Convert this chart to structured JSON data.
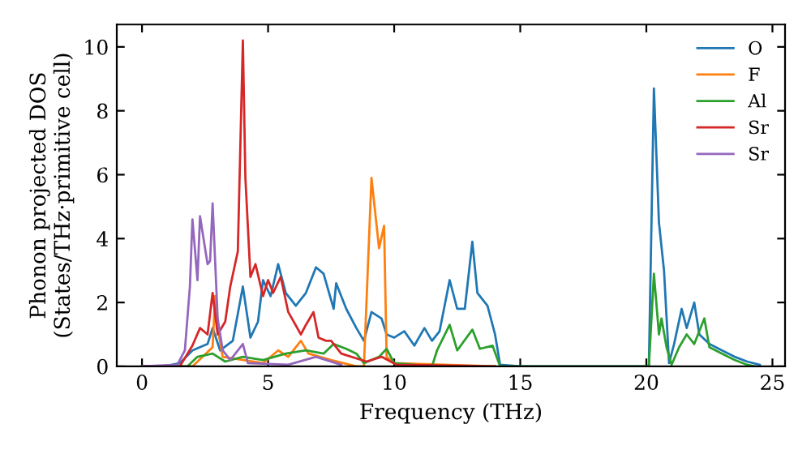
{
  "chart_data": {
    "type": "line",
    "xlabel": "Frequency (THz)",
    "ylabel": "Phonon projected DOS\n(States/THz·primitive cell)",
    "xlim": [
      -1,
      25.5
    ],
    "ylim": [
      0,
      10.7
    ],
    "xticks": [
      0,
      5,
      10,
      15,
      20,
      25
    ],
    "yticks": [
      0,
      2,
      4,
      6,
      8,
      10
    ],
    "grid": false,
    "legend": "top right",
    "marker": "none",
    "line_style": "solid",
    "series": [
      {
        "name": "O",
        "color": "#1f77b4",
        "x": [
          0,
          1,
          1.5,
          2,
          2.3,
          2.6,
          2.8,
          3.1,
          3.6,
          4.0,
          4.3,
          4.6,
          4.8,
          5.1,
          5.4,
          5.7,
          6.1,
          6.5,
          6.9,
          7.2,
          7.6,
          7.7,
          8.1,
          8.5,
          8.8,
          9.1,
          9.5,
          9.7,
          10.0,
          10.4,
          10.8,
          11.2,
          11.5,
          11.8,
          12.2,
          12.5,
          12.8,
          13.1,
          13.3,
          13.7,
          14.0,
          14.2,
          15,
          20.1,
          20.3,
          20.5,
          20.7,
          20.9,
          21.1,
          21.4,
          21.6,
          21.9,
          22.1,
          22.5,
          23,
          23.5,
          24,
          24.5
        ],
        "values": [
          0,
          0.02,
          0.1,
          0.5,
          0.6,
          0.7,
          1.2,
          0.5,
          0.8,
          2.5,
          0.9,
          1.4,
          2.7,
          2.2,
          3.2,
          2.3,
          1.9,
          2.3,
          3.1,
          2.9,
          1.8,
          2.6,
          1.8,
          1.2,
          0.8,
          1.7,
          1.5,
          1.0,
          0.9,
          1.1,
          0.65,
          1.2,
          0.8,
          1.1,
          2.7,
          1.8,
          1.8,
          3.9,
          2.3,
          1.9,
          1.0,
          0.05,
          0,
          0,
          8.7,
          4.5,
          3.0,
          0.1,
          0.7,
          1.8,
          1.2,
          2.0,
          1.0,
          0.7,
          0.5,
          0.3,
          0.15,
          0.05
        ]
      },
      {
        "name": "F",
        "color": "#ff7f0e",
        "x": [
          0,
          2.0,
          2.8,
          2.9,
          3.0,
          3.2,
          4.8,
          5.4,
          5.8,
          6.3,
          6.6,
          7.5,
          8.5,
          8.8,
          9.1,
          9.4,
          9.6,
          9.7,
          10.0,
          14
        ],
        "values": [
          0,
          0,
          0.6,
          2.2,
          1.2,
          0.3,
          0.1,
          0.5,
          0.3,
          0.8,
          0.4,
          0.2,
          0,
          0,
          5.9,
          3.7,
          4.4,
          0.3,
          0.1,
          0
        ]
      },
      {
        "name": "Al",
        "color": "#2ca02c",
        "x": [
          0,
          1.8,
          2.2,
          2.8,
          3.3,
          4.0,
          4.8,
          5.7,
          6.5,
          7.2,
          7.6,
          8.1,
          8.5,
          8.8,
          9.4,
          9.7,
          10.0,
          11.5,
          11.7,
          12.2,
          12.5,
          13.1,
          13.4,
          13.9,
          14.2,
          20.1,
          20.3,
          20.5,
          20.6,
          20.8,
          21.0,
          21.3,
          21.6,
          21.9,
          22.3,
          22.5,
          23,
          23.5,
          24,
          24.3
        ],
        "values": [
          0,
          0,
          0.3,
          0.4,
          0.15,
          0.3,
          0.2,
          0.4,
          0.5,
          0.4,
          0.7,
          0.55,
          0.4,
          0.1,
          0.3,
          0.55,
          0.1,
          0,
          0.5,
          1.3,
          0.5,
          1.15,
          0.55,
          0.65,
          0,
          0,
          2.9,
          1.0,
          1.5,
          0.6,
          0.05,
          0.6,
          1.0,
          0.7,
          1.5,
          0.6,
          0.4,
          0.2,
          0.05,
          0
        ]
      },
      {
        "name": "Sr",
        "color": "#d62728",
        "x": [
          0,
          1.5,
          2.0,
          2.3,
          2.6,
          2.8,
          3.0,
          3.3,
          3.5,
          3.8,
          4.0,
          4.1,
          4.3,
          4.5,
          4.8,
          5.0,
          5.2,
          5.5,
          5.8,
          6.3,
          6.5,
          6.8,
          7.0,
          7.3,
          7.5,
          7.9,
          8.9,
          9.5,
          10.1,
          14
        ],
        "values": [
          0,
          0,
          0.65,
          1.2,
          1.0,
          2.3,
          1.0,
          1.4,
          2.5,
          3.6,
          10.2,
          5.9,
          2.8,
          3.2,
          2.2,
          2.7,
          2.3,
          2.8,
          1.7,
          1.0,
          1.3,
          1.7,
          0.9,
          0.8,
          0.8,
          0.4,
          0.15,
          0.3,
          0.05,
          0
        ]
      },
      {
        "name": "Sr",
        "color": "#9467bd",
        "x": [
          0,
          1.4,
          1.7,
          1.9,
          2.0,
          2.2,
          2.3,
          2.6,
          2.7,
          2.8,
          3.0,
          3.2,
          3.5,
          4.0,
          4.2,
          5.8,
          6.9,
          7.9
        ],
        "values": [
          0,
          0.05,
          0.5,
          2.5,
          4.6,
          2.7,
          4.7,
          3.2,
          3.3,
          5.1,
          1.5,
          0.5,
          0.2,
          0.7,
          0.1,
          0.05,
          0.3,
          0.05
        ]
      }
    ]
  }
}
